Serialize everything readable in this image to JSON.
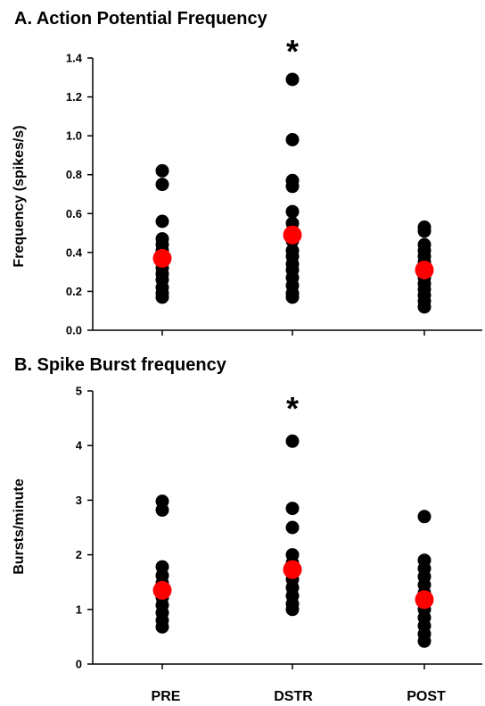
{
  "colors": {
    "points": "#000000",
    "mean": "#ff0000",
    "axis": "#000000"
  },
  "chart_data": [
    {
      "type": "scatter",
      "title": "A. Action Potential Frequency",
      "ylabel": "Frequency (spikes/s)",
      "ylim": [
        0.0,
        1.4
      ],
      "yticks": [
        0.0,
        0.2,
        0.4,
        0.6,
        0.8,
        1.0,
        1.2,
        1.4
      ],
      "ytick_labels": [
        "0.0",
        "0.2",
        "0.4",
        "0.6",
        "0.8",
        "1.0",
        "1.2",
        "1.4"
      ],
      "categories": [
        "PRE",
        "DSTR",
        "POST"
      ],
      "points": [
        [
          0.82,
          0.75,
          0.56,
          0.47,
          0.44,
          0.41,
          0.38,
          0.35,
          0.32,
          0.29,
          0.26,
          0.22,
          0.19,
          0.17
        ],
        [
          1.29,
          0.98,
          0.77,
          0.74,
          0.61,
          0.55,
          0.51,
          0.46,
          0.41,
          0.38,
          0.34,
          0.31,
          0.27,
          0.23,
          0.19,
          0.17
        ],
        [
          0.53,
          0.51,
          0.44,
          0.41,
          0.38,
          0.35,
          0.33,
          0.3,
          0.27,
          0.24,
          0.21,
          0.18,
          0.15,
          0.12
        ]
      ],
      "means": [
        0.37,
        0.49,
        0.31
      ],
      "significance": [
        "",
        "*",
        ""
      ]
    },
    {
      "type": "scatter",
      "title": "B. Spike Burst frequency",
      "ylabel": "Bursts/minute",
      "ylim": [
        0,
        5
      ],
      "yticks": [
        0,
        1,
        2,
        3,
        4,
        5
      ],
      "ytick_labels": [
        "0",
        "1",
        "2",
        "3",
        "4",
        "5"
      ],
      "categories": [
        "PRE",
        "DSTR",
        "POST"
      ],
      "points": [
        [
          2.98,
          2.82,
          1.78,
          1.62,
          1.48,
          1.35,
          1.22,
          1.08,
          0.94,
          0.8,
          0.68
        ],
        [
          4.08,
          2.85,
          2.5,
          2.0,
          1.85,
          1.7,
          1.55,
          1.4,
          1.25,
          1.1,
          1.0
        ],
        [
          2.7,
          1.9,
          1.75,
          1.6,
          1.45,
          1.3,
          1.15,
          1.0,
          0.85,
          0.7,
          0.55,
          0.42
        ]
      ],
      "means": [
        1.35,
        1.73,
        1.18
      ],
      "significance": [
        "",
        "*",
        ""
      ]
    }
  ]
}
